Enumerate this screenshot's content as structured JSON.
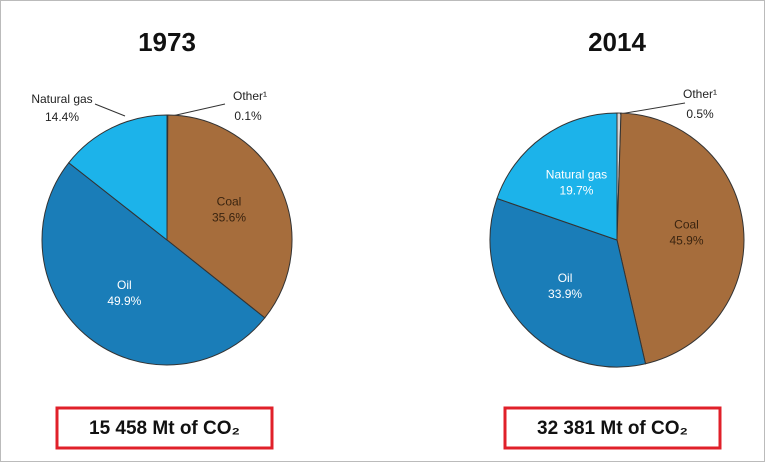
{
  "chart_data": [
    {
      "type": "pie",
      "title": "1973",
      "categories": [
        "Other¹",
        "Coal",
        "Oil",
        "Natural gas"
      ],
      "values": [
        0.1,
        35.6,
        49.9,
        14.4
      ],
      "value_labels": [
        "0.1%",
        "35.6%",
        "49.9%",
        "14.4%"
      ],
      "colors": [
        "#d8d8d8",
        "#a66d3c",
        "#1a7db8",
        "#1cb3ea"
      ],
      "footnote": "15 458 Mt of CO₂"
    },
    {
      "type": "pie",
      "title": "2014",
      "categories": [
        "Other¹",
        "Coal",
        "Oil",
        "Natural gas"
      ],
      "values": [
        0.5,
        45.9,
        33.9,
        19.7
      ],
      "value_labels": [
        "0.5%",
        "45.9%",
        "33.9%",
        "19.7%"
      ],
      "colors": [
        "#d8d8d8",
        "#a66d3c",
        "#1a7db8",
        "#1cb3ea"
      ],
      "footnote": "32 381 Mt of CO₂"
    }
  ]
}
